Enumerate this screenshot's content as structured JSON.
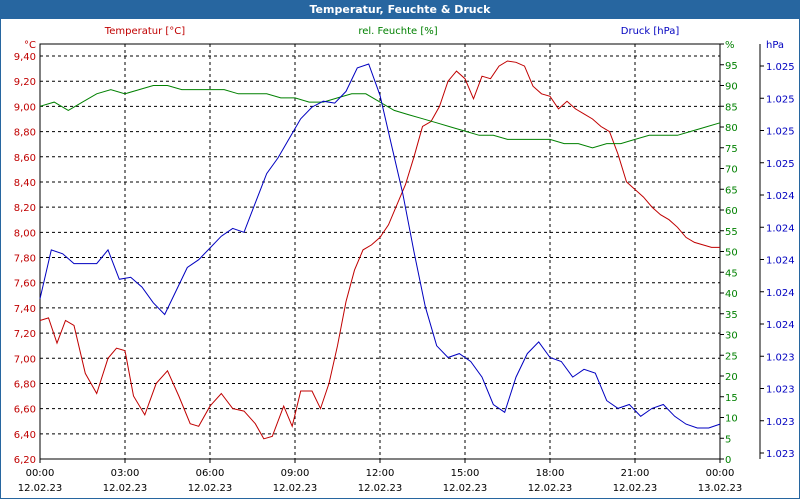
{
  "window": {
    "title": "Temperatur, Feuchte & Druck"
  },
  "colors": {
    "temperature": "#c00000",
    "humidity": "#008000",
    "pressure": "#0000c0",
    "titlebar": "#2766a0"
  },
  "chart_data": {
    "type": "line",
    "title": "Temperatur, Feuchte & Druck",
    "grid": true,
    "x_ticks": [
      {
        "time": "00:00",
        "date": "12.02.23"
      },
      {
        "time": "03:00",
        "date": "12.02.23"
      },
      {
        "time": "06:00",
        "date": "12.02.23"
      },
      {
        "time": "09:00",
        "date": "12.02.23"
      },
      {
        "time": "12:00",
        "date": "12.02.23"
      },
      {
        "time": "15:00",
        "date": "12.02.23"
      },
      {
        "time": "18:00",
        "date": "12.02.23"
      },
      {
        "time": "21:00",
        "date": "12.02.23"
      },
      {
        "time": "00:00",
        "date": "13.02.23"
      }
    ],
    "xlim_hours": [
      0,
      24
    ],
    "axes": {
      "temperature": {
        "label": "Temperatur [°C]",
        "unit": "°C",
        "ylim": [
          6.2,
          9.5
        ],
        "ticks": [
          "9,40",
          "9,20",
          "9,00",
          "8,80",
          "8,60",
          "8,40",
          "8,20",
          "8,00",
          "7,80",
          "7,60",
          "7,40",
          "7,20",
          "7,00",
          "6,80",
          "6,60",
          "6,40",
          "6,20"
        ]
      },
      "humidity": {
        "label": "rel. Feuchte [%]",
        "unit": "%",
        "ylim": [
          0,
          100
        ],
        "ticks": [
          "%",
          "95",
          "90",
          "85",
          "80",
          "75",
          "70",
          "65",
          "60",
          "55",
          "50",
          "45",
          "40",
          "35",
          "30",
          "25",
          "20",
          "15",
          "10",
          "5",
          "0"
        ]
      },
      "pressure": {
        "label": "Druck [hPa]",
        "unit": "hPa",
        "ticks": [
          "1.025",
          "1.025",
          "1.025",
          "1.025",
          "1.024",
          "1.024",
          "1.024",
          "1.024",
          "1.024",
          "1.023",
          "1.023",
          "1.023",
          "1.023"
        ]
      }
    },
    "series": [
      {
        "name": "Temperatur [°C]",
        "axis": "temperature",
        "x": [
          0,
          0.3,
          0.6,
          0.9,
          1.2,
          1.6,
          2.0,
          2.4,
          2.7,
          3.0,
          3.3,
          3.7,
          4.1,
          4.5,
          4.9,
          5.3,
          5.6,
          6.0,
          6.4,
          6.8,
          7.2,
          7.6,
          7.9,
          8.2,
          8.6,
          8.9,
          9.2,
          9.6,
          9.9,
          10.2,
          10.5,
          10.8,
          11.1,
          11.4,
          11.7,
          12.0,
          12.3,
          12.6,
          12.9,
          13.2,
          13.5,
          13.8,
          14.1,
          14.4,
          14.7,
          15.0,
          15.3,
          15.6,
          15.9,
          16.2,
          16.5,
          16.8,
          17.1,
          17.4,
          17.7,
          18.0,
          18.3,
          18.6,
          18.9,
          19.2,
          19.5,
          19.8,
          20.1,
          20.4,
          20.7,
          21.0,
          21.3,
          21.6,
          21.9,
          22.2,
          22.5,
          22.8,
          23.1,
          23.4,
          23.7,
          24.0
        ],
        "values": [
          7.3,
          7.32,
          7.12,
          7.3,
          7.26,
          6.88,
          6.72,
          7.0,
          7.08,
          7.06,
          6.7,
          6.55,
          6.8,
          6.9,
          6.7,
          6.48,
          6.46,
          6.62,
          6.72,
          6.6,
          6.58,
          6.48,
          6.36,
          6.38,
          6.62,
          6.46,
          6.74,
          6.74,
          6.6,
          6.8,
          7.1,
          7.45,
          7.7,
          7.86,
          7.9,
          7.96,
          8.06,
          8.22,
          8.38,
          8.6,
          8.84,
          8.88,
          9.0,
          9.2,
          9.28,
          9.22,
          9.06,
          9.24,
          9.22,
          9.32,
          9.36,
          9.35,
          9.32,
          9.16,
          9.1,
          9.08,
          8.98,
          9.04,
          8.98,
          8.94,
          8.9,
          8.84,
          8.8,
          8.62,
          8.4,
          8.34,
          8.28,
          8.2,
          8.14,
          8.1,
          8.04,
          7.96,
          7.92,
          7.9,
          7.88,
          7.88
        ]
      },
      {
        "name": "rel. Feuchte [%]",
        "axis": "humidity",
        "x": [
          0,
          0.5,
          1.0,
          1.5,
          2.0,
          2.5,
          3.0,
          3.5,
          4.0,
          4.5,
          5.0,
          5.5,
          6.0,
          6.5,
          7.0,
          7.5,
          8.0,
          8.5,
          9.0,
          9.5,
          10.0,
          10.5,
          11.0,
          11.5,
          12.0,
          12.5,
          13.0,
          13.5,
          14.0,
          14.5,
          15.0,
          15.5,
          16.0,
          16.5,
          17.0,
          17.5,
          18.0,
          18.5,
          19.0,
          19.5,
          20.0,
          20.5,
          21.0,
          21.5,
          22.0,
          22.5,
          23.0,
          23.5,
          24.0
        ],
        "values": [
          85,
          86,
          84,
          86,
          88,
          89,
          88,
          89,
          90,
          90,
          89,
          89,
          89,
          89,
          88,
          88,
          88,
          87,
          87,
          86,
          86,
          87,
          88,
          88,
          86,
          84,
          83,
          82,
          81,
          80,
          79,
          78,
          78,
          77,
          77,
          77,
          77,
          76,
          76,
          75,
          76,
          76,
          77,
          78,
          78,
          78,
          79,
          80,
          81
        ]
      },
      {
        "name": "Druck [hPa]",
        "axis": "pressure",
        "x": [
          0,
          0.4,
          0.8,
          1.2,
          1.6,
          2.0,
          2.4,
          2.8,
          3.2,
          3.6,
          4.0,
          4.4,
          4.8,
          5.2,
          5.6,
          6.0,
          6.4,
          6.8,
          7.2,
          7.6,
          8.0,
          8.4,
          8.8,
          9.2,
          9.6,
          10.0,
          10.4,
          10.8,
          11.2,
          11.6,
          12.0,
          12.4,
          12.8,
          13.2,
          13.6,
          14.0,
          14.4,
          14.8,
          15.2,
          15.6,
          16.0,
          16.4,
          16.8,
          17.2,
          17.6,
          18.0,
          18.4,
          18.8,
          19.2,
          19.6,
          20.0,
          20.4,
          20.8,
          21.2,
          21.6,
          22.0,
          22.4,
          22.8,
          23.2,
          23.6,
          24.0
        ],
        "values": [
          1023.26,
          1023.51,
          1023.49,
          1023.44,
          1023.44,
          1023.44,
          1023.51,
          1023.36,
          1023.37,
          1023.32,
          1023.24,
          1023.18,
          1023.3,
          1023.42,
          1023.46,
          1023.52,
          1023.58,
          1023.62,
          1023.6,
          1023.75,
          1023.9,
          1023.98,
          1024.08,
          1024.18,
          1024.24,
          1024.27,
          1024.26,
          1024.32,
          1024.44,
          1024.46,
          1024.3,
          1024.05,
          1023.8,
          1023.5,
          1023.22,
          1023.02,
          1022.96,
          1022.98,
          1022.94,
          1022.86,
          1022.72,
          1022.68,
          1022.86,
          1022.98,
          1023.04,
          1022.96,
          1022.94,
          1022.86,
          1022.9,
          1022.88,
          1022.74,
          1022.7,
          1022.72,
          1022.66,
          1022.7,
          1022.72,
          1022.66,
          1022.62,
          1022.6,
          1022.6,
          1022.62
        ]
      }
    ]
  }
}
